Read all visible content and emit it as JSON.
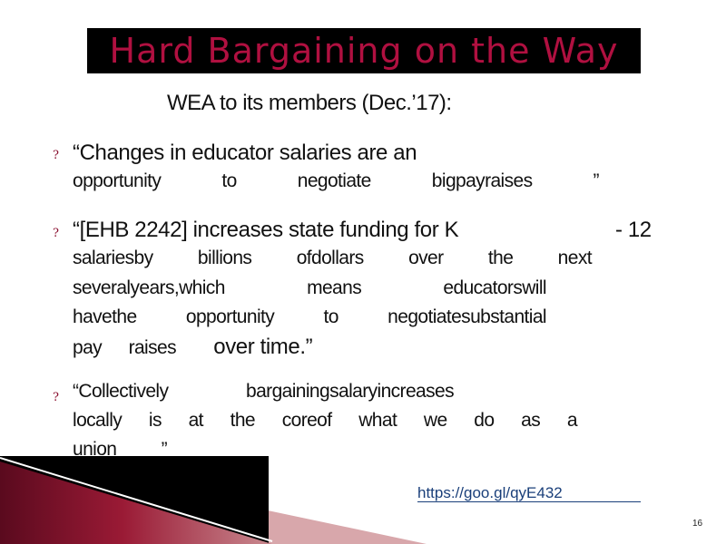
{
  "slide": {
    "title": "Hard Bargaining on the Way",
    "subtitle": "WEA to its members (Dec.’17):",
    "bullet_glyph": "?",
    "quote1": {
      "line1": "“Changes in educator salaries are an",
      "line2_words": [
        "opportunity",
        "to",
        "negotiate",
        "bigpayraises",
        "”"
      ]
    },
    "quote2": {
      "line1": "“[EHB 2242] increases state funding for K",
      "line1_suffix": "- 12",
      "line2_words": [
        "salariesby",
        "billions",
        "ofdollars",
        "over",
        "the",
        "next"
      ],
      "line3_words": [
        "severalyears,which",
        "means",
        "educatorswill"
      ],
      "line4_words": [
        "havethe",
        "opportunity",
        "to",
        "negotiatesubstantial"
      ],
      "line5_words": [
        "pay",
        "raises"
      ],
      "line5_tail": "over time.”"
    },
    "quote3": {
      "line1_words": [
        "“Collectively",
        "bargainingsalaryincreases"
      ],
      "line2_words": [
        "locally",
        "is",
        "at",
        "the",
        "coreof",
        "what",
        "we",
        "do",
        "as",
        "a"
      ],
      "line3_words": [
        "union",
        "”"
      ]
    },
    "link": "https://goo.gl/qyE432",
    "page_number": "16",
    "colors": {
      "title_text": "#b01040",
      "title_bg": "#000000",
      "bullet": "#8a1030",
      "link": "#1a3f7a",
      "accent_dark": "#7a0f2a",
      "accent_light": "#c98a90"
    }
  }
}
